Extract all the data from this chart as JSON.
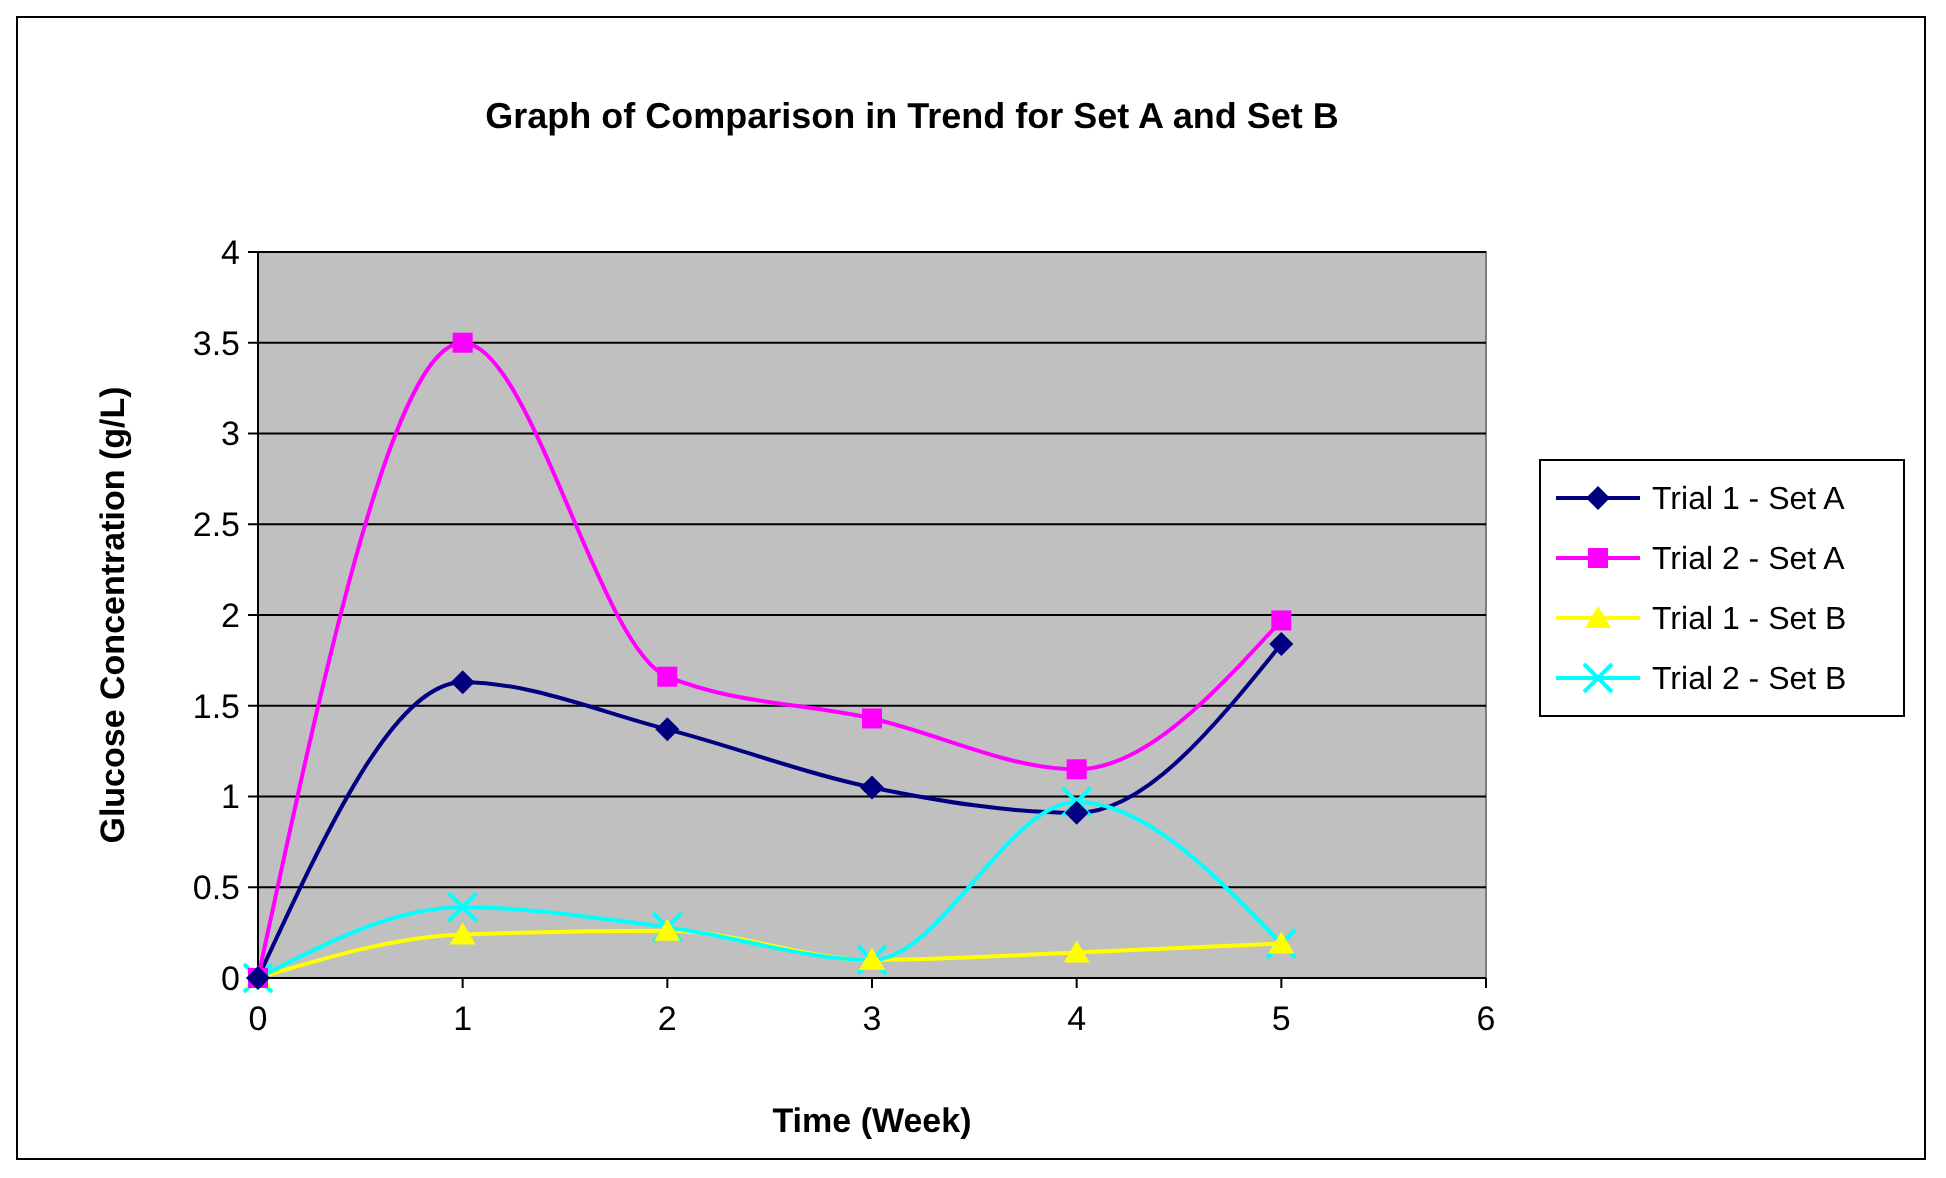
{
  "chart_data": {
    "type": "line",
    "title": "Graph of Comparison in Trend for Set A and Set B",
    "xlabel": "Time (Week)",
    "ylabel": "Glucose Concentration (g/L)",
    "x": [
      0,
      1,
      2,
      3,
      4,
      5
    ],
    "xlim": [
      0,
      6
    ],
    "xticks": [
      0,
      1,
      2,
      3,
      4,
      5,
      6
    ],
    "ylim": [
      0,
      4
    ],
    "yticks": [
      0,
      0.5,
      1,
      1.5,
      2,
      2.5,
      3,
      3.5,
      4
    ],
    "grid": "y",
    "legend": "right",
    "series": [
      {
        "name": "Trial 1 - Set A",
        "color": "#000080",
        "marker": "diamond",
        "values": [
          0,
          1.63,
          1.37,
          1.05,
          0.91,
          1.84
        ]
      },
      {
        "name": "Trial 2 - Set A",
        "color": "#ff00ff",
        "marker": "square",
        "values": [
          0,
          3.5,
          1.66,
          1.43,
          1.15,
          1.97
        ]
      },
      {
        "name": "Trial 1 - Set B",
        "color": "#ffff00",
        "marker": "triangle",
        "values": [
          0,
          0.24,
          0.26,
          0.1,
          0.14,
          0.19
        ]
      },
      {
        "name": "Trial 2 - Set B",
        "color": "#00ffff",
        "marker": "cross",
        "values": [
          0,
          0.39,
          0.28,
          0.1,
          0.97,
          0.19
        ]
      }
    ]
  }
}
